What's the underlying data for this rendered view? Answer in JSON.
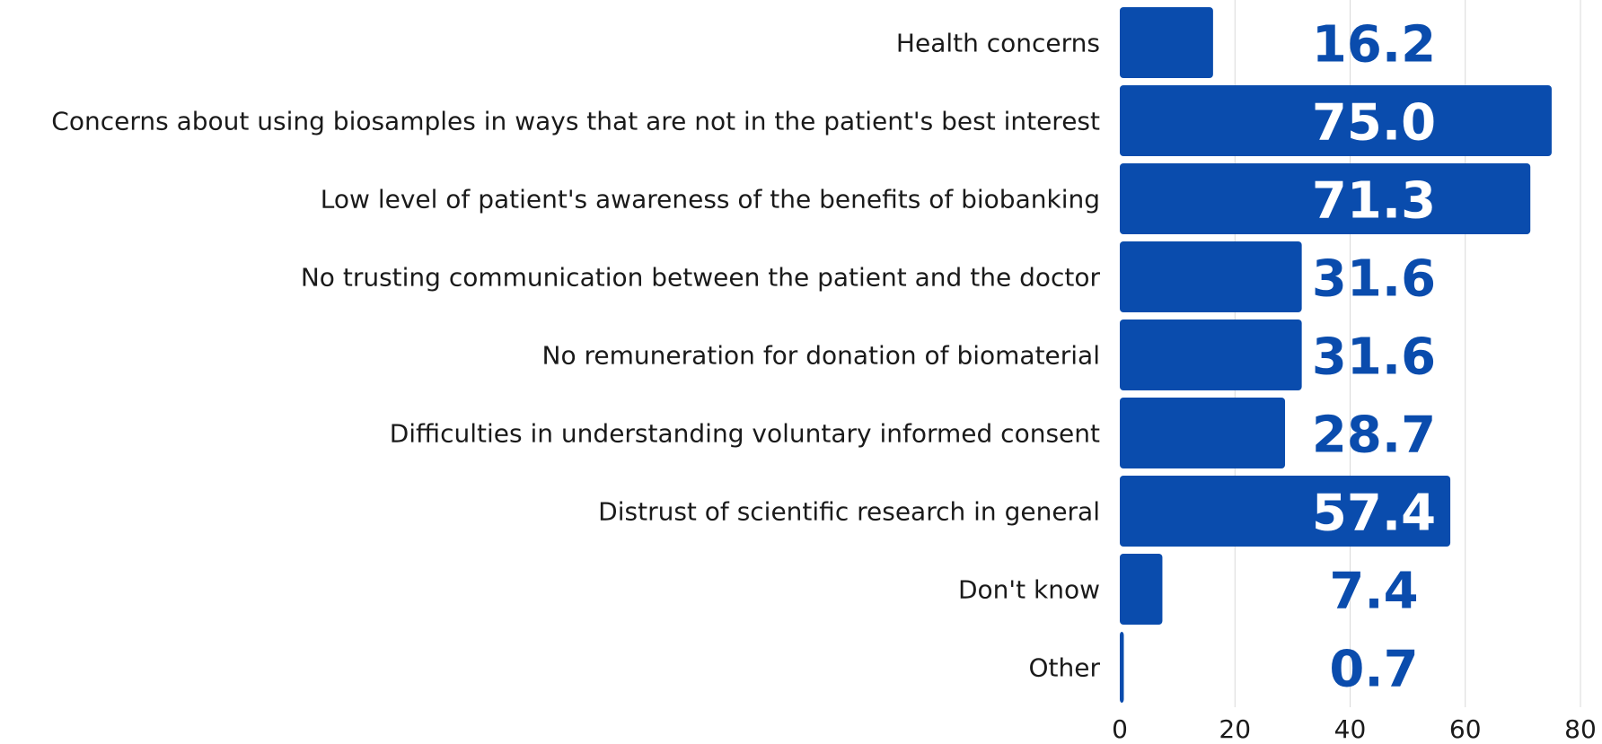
{
  "chart_data": {
    "type": "bar",
    "orientation": "horizontal",
    "categories": [
      "Health concerns",
      "Concerns about using biosamples in ways that are not in the patient's best interest",
      "Low level of patient's awareness of the benefits of biobanking",
      "No trusting communication between the patient and the doctor",
      "No remuneration for donation of biomaterial",
      "Difficulties in understanding voluntary informed consent",
      "Distrust of scientific research in general",
      "Don't know",
      "Other"
    ],
    "values": [
      16.2,
      75.0,
      71.3,
      31.6,
      31.6,
      28.7,
      57.4,
      7.4,
      0.7
    ],
    "value_labels": [
      "16.2",
      "75.0",
      "71.3",
      "31.6",
      "31.6",
      "28.7",
      "57.4",
      "7.4",
      "0.7"
    ],
    "xlim": [
      0,
      80
    ],
    "x_ticks": [
      0,
      20,
      40,
      60,
      80
    ],
    "x_tick_labels": [
      "0",
      "20",
      "40",
      "60",
      "80"
    ],
    "grid": true,
    "title": "",
    "xlabel": "",
    "ylabel": ""
  },
  "colors": {
    "bar": "#0a4cad",
    "label_on_bar": "#ffffff",
    "label_off_bar": "#0a4cad"
  }
}
